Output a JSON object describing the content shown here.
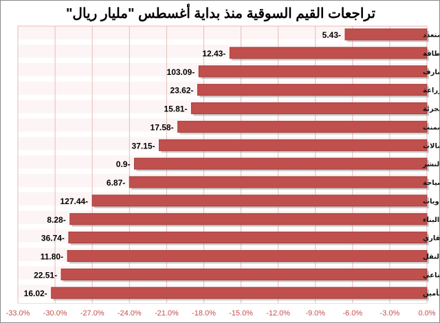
{
  "chart_data": {
    "type": "bar",
    "orientation": "horizontal",
    "title": "تراجعات القيم السوقية منذ بداية أغسطس \"مليار ريال\"",
    "xlabel": "",
    "ylabel": "",
    "xlim": [
      -33,
      0
    ],
    "x_ticks": [
      "-33.0%",
      "-30.0%",
      "-27.0%",
      "-24.0%",
      "-21.0%",
      "-18.0%",
      "-15.0%",
      "-12.0%",
      "-9.0%",
      "-6.0%",
      "-3.0%",
      "0.0%"
    ],
    "categories": [
      "الاستثمار المتعدد",
      "الطاقة",
      "المصارف",
      "الزراعة",
      "التجزئة",
      "الاسمنت",
      "الاتصالات",
      "الاعلام والنشر",
      "الفنادق والسياحة",
      "البتروكيماويات",
      "التشييد والبناء",
      "التطوير العقاري",
      "النقل",
      "الاستثمار الصناعي",
      "التأمين"
    ],
    "values_percent": [
      -6.6,
      -15.9,
      -18.4,
      -18.5,
      -19.0,
      -20.1,
      -21.6,
      -23.6,
      -24.0,
      -27.0,
      -28.8,
      -28.9,
      -29.0,
      -29.5,
      -30.3
    ],
    "data_labels": [
      "5.43-",
      "12.43-",
      "103.09-",
      "23.62-",
      "15.81-",
      "17.58-",
      "37.15-",
      "0.9-",
      "6.87-",
      "127.44-",
      "8.28-",
      "36.74-",
      "11.80-",
      "22.51-",
      "16.02-"
    ],
    "grid": true,
    "colors": {
      "bar": "#c0504d",
      "bar_border": "#a33c39",
      "grid": "#e6b9b8",
      "tick": "#c0504d",
      "plot_bg": "#fdf5f5"
    }
  }
}
